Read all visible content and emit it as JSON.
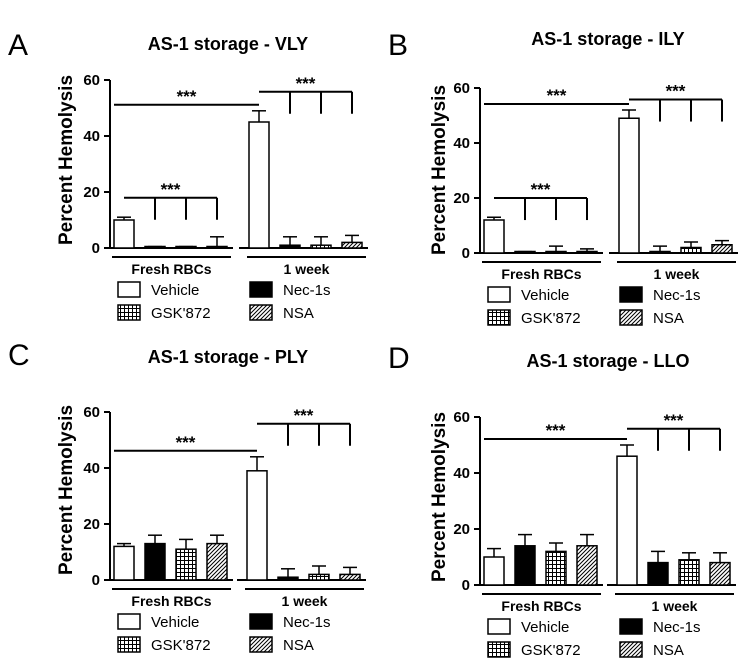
{
  "chart_data": [
    {
      "id": "A",
      "type": "bar",
      "panel_label": "A",
      "title": "AS-1 storage - VLY",
      "ylabel": "Percent Hemolysis",
      "ylim": [
        0,
        60
      ],
      "yticks": [
        0,
        20,
        40,
        60
      ],
      "groups": [
        "Fresh RBCs",
        "1 week"
      ],
      "series": [
        {
          "name": "Vehicle",
          "pattern": "white",
          "values": [
            10,
            45
          ],
          "errors": [
            1,
            4
          ]
        },
        {
          "name": "Nec-1s",
          "pattern": "black",
          "values": [
            0,
            1
          ],
          "errors": [
            0.5,
            3
          ]
        },
        {
          "name": "GSK'872",
          "pattern": "grid",
          "values": [
            0,
            1
          ],
          "errors": [
            0.5,
            3
          ]
        },
        {
          "name": "NSA",
          "pattern": "hatch",
          "values": [
            0.5,
            2
          ],
          "errors": [
            3.5,
            2.5
          ]
        }
      ],
      "significance": [
        {
          "type": "across",
          "label": "***"
        },
        {
          "type": "group",
          "group": 0,
          "label": "***"
        },
        {
          "type": "group",
          "group": 1,
          "label": "***"
        }
      ]
    },
    {
      "id": "B",
      "type": "bar",
      "panel_label": "B",
      "title": "AS-1 storage - ILY",
      "ylabel": "Percent Hemolysis",
      "ylim": [
        0,
        60
      ],
      "yticks": [
        0,
        20,
        40,
        60
      ],
      "groups": [
        "Fresh RBCs",
        "1 week"
      ],
      "series": [
        {
          "name": "Vehicle",
          "pattern": "white",
          "values": [
            12,
            49
          ],
          "errors": [
            1,
            3
          ]
        },
        {
          "name": "Nec-1s",
          "pattern": "black",
          "values": [
            0,
            0.5
          ],
          "errors": [
            0.5,
            2
          ]
        },
        {
          "name": "GSK'872",
          "pattern": "grid",
          "values": [
            0.5,
            2
          ],
          "errors": [
            2,
            2
          ]
        },
        {
          "name": "NSA",
          "pattern": "hatch",
          "values": [
            0.5,
            3
          ],
          "errors": [
            1,
            1.5
          ]
        }
      ],
      "significance": [
        {
          "type": "across",
          "label": "***"
        },
        {
          "type": "group",
          "group": 0,
          "label": "***"
        },
        {
          "type": "group",
          "group": 1,
          "label": "***"
        }
      ]
    },
    {
      "id": "C",
      "type": "bar",
      "panel_label": "C",
      "title": "AS-1 storage - PLY",
      "ylabel": "Percent Hemolysis",
      "ylim": [
        0,
        60
      ],
      "yticks": [
        0,
        20,
        40,
        60
      ],
      "groups": [
        "Fresh RBCs",
        "1 week"
      ],
      "series": [
        {
          "name": "Vehicle",
          "pattern": "white",
          "values": [
            12,
            39
          ],
          "errors": [
            1,
            5
          ]
        },
        {
          "name": "Nec-1s",
          "pattern": "black",
          "values": [
            13,
            1
          ],
          "errors": [
            3,
            3
          ]
        },
        {
          "name": "GSK'872",
          "pattern": "grid",
          "values": [
            11,
            2
          ],
          "errors": [
            3.5,
            3
          ]
        },
        {
          "name": "NSA",
          "pattern": "hatch",
          "values": [
            13,
            2
          ],
          "errors": [
            3,
            2.5
          ]
        }
      ],
      "significance": [
        {
          "type": "across",
          "label": "***"
        },
        {
          "type": "group",
          "group": 1,
          "label": "***"
        }
      ]
    },
    {
      "id": "D",
      "type": "bar",
      "panel_label": "D",
      "title": "AS-1 storage - LLO",
      "ylabel": "Percent Hemolysis",
      "ylim": [
        0,
        60
      ],
      "yticks": [
        0,
        20,
        40,
        60
      ],
      "groups": [
        "Fresh RBCs",
        "1 week"
      ],
      "series": [
        {
          "name": "Vehicle",
          "pattern": "white",
          "values": [
            10,
            46
          ],
          "errors": [
            3,
            4
          ]
        },
        {
          "name": "Nec-1s",
          "pattern": "black",
          "values": [
            14,
            8
          ],
          "errors": [
            4,
            4
          ]
        },
        {
          "name": "GSK'872",
          "pattern": "grid",
          "values": [
            12,
            9
          ],
          "errors": [
            3,
            2.5
          ]
        },
        {
          "name": "NSA",
          "pattern": "hatch",
          "values": [
            14,
            8
          ],
          "errors": [
            4,
            3.5
          ]
        }
      ],
      "significance": [
        {
          "type": "across",
          "label": "***"
        },
        {
          "type": "group",
          "group": 1,
          "label": "***"
        }
      ]
    }
  ]
}
